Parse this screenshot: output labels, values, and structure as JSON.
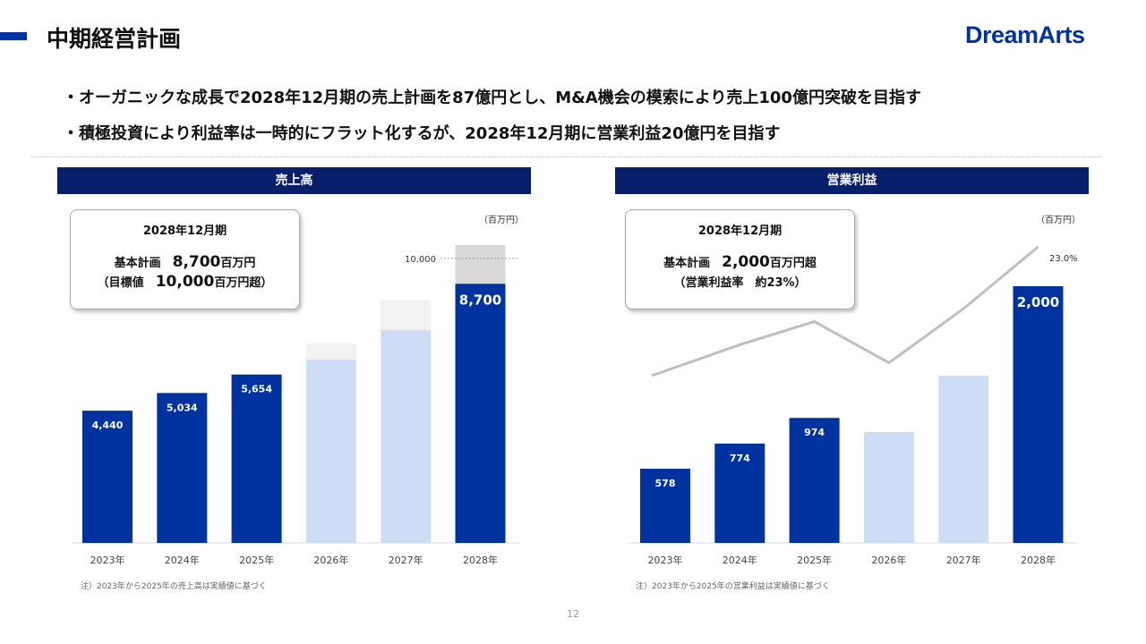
{
  "header": {
    "title": "中期経営計画",
    "logo": "DreamArts"
  },
  "bullets": [
    "・オーガニックな成長で2028年12月期の売上計画を87億円とし、M&A機会の模索により売上100億円突破を目指す",
    "・積極投資により利益率は一時的にフラット化するが、2028年12月期に営業利益20億円を目指す"
  ],
  "colors": {
    "actual": "#0033a0",
    "plan": "#cfdcf5",
    "target": "#d9d9d9",
    "header": "#0a1f6b",
    "line": "#bfbfbf"
  },
  "revenue_box": {
    "period": "2028年12月期",
    "line1_label": "基本計画",
    "line1_value": "8,700",
    "line1_unit": "百万円",
    "line2_label": "（目標値",
    "line2_value": "10,000",
    "line2_unit": "百万円超）"
  },
  "profit_box": {
    "period": "2028年12月期",
    "line1_label": "基本計画",
    "line1_value": "2,000",
    "line1_unit": "百万円超",
    "line2": "（営業利益率　約23%）"
  },
  "footnotes": [
    "注）2023年から2025年の売上高は実績値に基づく",
    "注）2023年から2025年の営業利益は実績値に基づく"
  ],
  "page_number": "12",
  "chart_data": [
    {
      "type": "bar",
      "title": "売上高",
      "unit": "（百万円）",
      "categories": [
        "2023年",
        "2024年",
        "2025年",
        "2026年",
        "2027年",
        "2028年"
      ],
      "values": [
        4440,
        5034,
        5654,
        6150,
        7150,
        8700
      ],
      "upside": [
        null,
        null,
        null,
        6700,
        8150,
        10000
      ],
      "labels": [
        "4,440",
        "5,034",
        "5,654",
        "",
        "",
        "8,700"
      ],
      "reference_line": {
        "value": 10000,
        "label": "10,000"
      },
      "actual": [
        true,
        true,
        true,
        false,
        false,
        true
      ]
    },
    {
      "type": "bar+line",
      "title": "営業利益",
      "unit": "（百万円）",
      "categories": [
        "2023年",
        "2024年",
        "2025年",
        "2026年",
        "2027年",
        "2028年"
      ],
      "values": [
        578,
        774,
        974,
        864,
        1303,
        2000
      ],
      "labels": [
        "578",
        "774",
        "974",
        "",
        "",
        "2,000"
      ],
      "actual": [
        true,
        true,
        true,
        false,
        false,
        true
      ],
      "margin_percent": [
        13.0,
        15.4,
        17.2,
        14.0,
        18.2,
        23.0
      ],
      "margin_label": "23.0%"
    }
  ]
}
